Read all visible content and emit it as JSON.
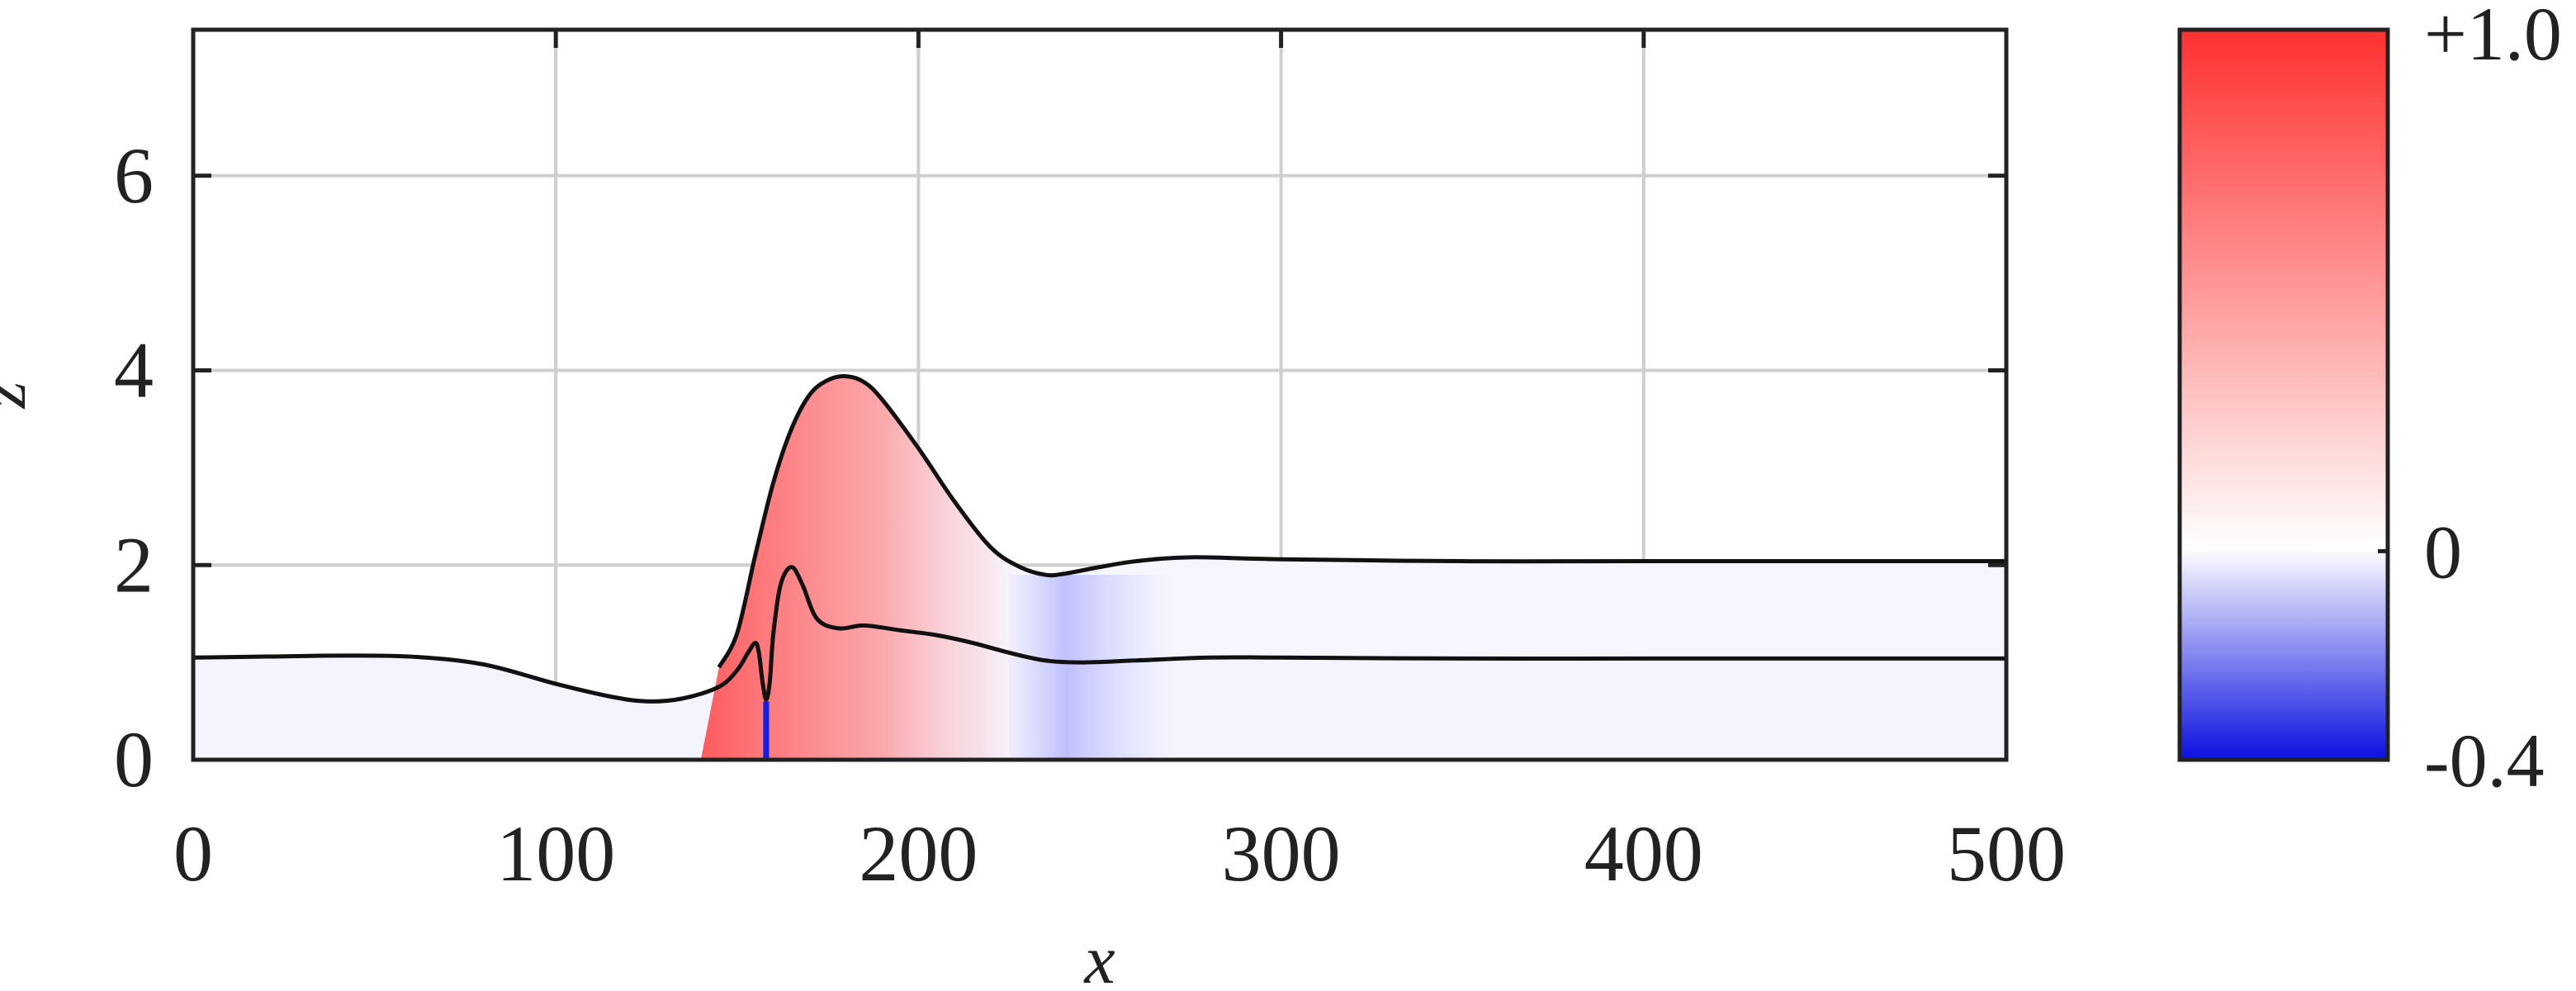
{
  "chart_data": {
    "type": "area",
    "title": "",
    "xlabel": "x",
    "ylabel": "z",
    "xlim": [
      0,
      500
    ],
    "ylim": [
      0,
      7.5
    ],
    "grid": true,
    "x_ticks": [
      0,
      100,
      200,
      300,
      400,
      500
    ],
    "y_ticks": [
      0,
      2,
      4,
      6
    ],
    "x_tick_labels": [
      "0",
      "100",
      "200",
      "300",
      "400",
      "500"
    ],
    "y_tick_labels": [
      "0",
      "2",
      "4",
      "6"
    ],
    "series": [
      {
        "role": "lower-interface",
        "x": [
          0,
          20,
          40,
          60,
          80,
          100,
          115,
          125,
          135,
          145,
          150,
          153,
          155,
          156,
          157,
          158,
          159,
          160,
          162,
          165,
          168,
          172,
          178,
          185,
          195,
          205,
          215,
          225,
          235,
          245,
          260,
          280,
          300,
          350,
          400,
          450,
          500
        ],
        "z": [
          1.05,
          1.06,
          1.07,
          1.06,
          0.98,
          0.78,
          0.65,
          0.6,
          0.63,
          0.75,
          0.92,
          1.1,
          1.2,
          1.1,
          0.8,
          0.62,
          0.8,
          1.3,
          1.8,
          1.98,
          1.8,
          1.45,
          1.35,
          1.38,
          1.33,
          1.28,
          1.2,
          1.1,
          1.02,
          1.0,
          1.02,
          1.05,
          1.05,
          1.04,
          1.04,
          1.04,
          1.04
        ]
      },
      {
        "role": "upper-interface",
        "x": [
          145,
          150,
          155,
          160,
          165,
          170,
          175,
          180,
          185,
          190,
          200,
          210,
          220,
          228,
          235,
          240,
          250,
          260,
          275,
          300,
          350,
          400,
          450,
          500
        ],
        "z": [
          0.95,
          1.3,
          2.1,
          2.85,
          3.4,
          3.75,
          3.9,
          3.94,
          3.88,
          3.7,
          3.2,
          2.65,
          2.18,
          1.98,
          1.9,
          1.91,
          1.98,
          2.04,
          2.08,
          2.06,
          2.04,
          2.04,
          2.04,
          2.04
        ]
      }
    ],
    "colorbar": {
      "min": -0.4,
      "max": 1.0,
      "tick_labels": [
        "+1.0",
        "0",
        "-0.4"
      ],
      "tick_values": [
        1.0,
        0,
        -0.4
      ],
      "colors": {
        "max": "#ff3030",
        "zero": "#ffffff",
        "min": "#0a10e0"
      }
    },
    "field_patches": [
      {
        "x_range": [
          150,
          225
        ],
        "value": 0.55
      },
      {
        "x_range": [
          225,
          265
        ],
        "value": -0.12
      },
      {
        "x_range": [
          155,
          160
        ],
        "value": -0.4
      }
    ],
    "colors": {
      "line": "#111111",
      "grid": "#cfcfcf",
      "frame": "#222222"
    }
  }
}
